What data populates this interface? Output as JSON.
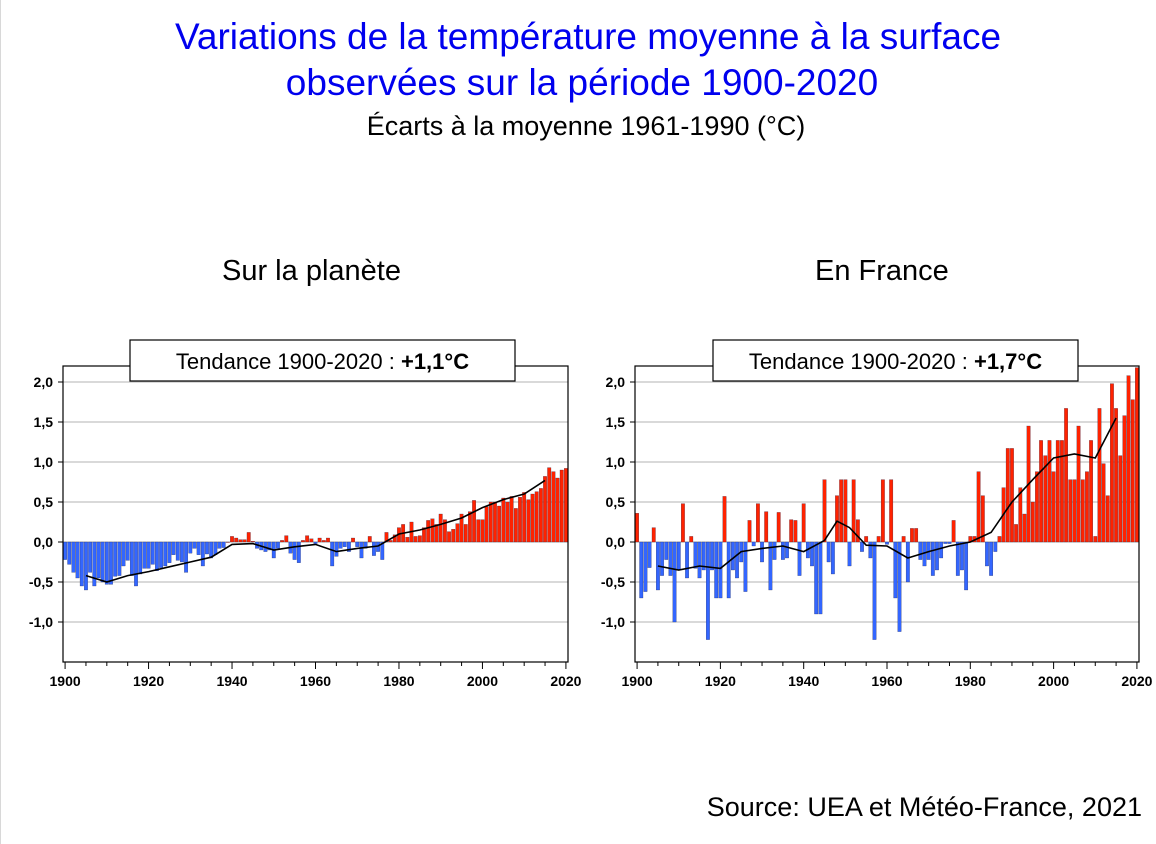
{
  "header": {
    "title_line1": "Variations de la température moyenne à la surface",
    "title_line2": "observées sur la période 1900-2020",
    "subtitle": "Écarts à la moyenne 1961-1990 (°C)"
  },
  "footer": {
    "source": "Source: UEA et Météo-France, 2021"
  },
  "colors": {
    "title": "#0000ee",
    "negative": "#3366ff",
    "positive": "#ff2200",
    "trend": "#000000"
  },
  "chart_data": [
    {
      "type": "bar",
      "title": "Sur la planète",
      "trend_label": "Tendance 1900-2020 : ",
      "trend_value": "+1,1°C",
      "x": [
        1900,
        1901,
        1902,
        1903,
        1904,
        1905,
        1906,
        1907,
        1908,
        1909,
        1910,
        1911,
        1912,
        1913,
        1914,
        1915,
        1916,
        1917,
        1918,
        1919,
        1920,
        1921,
        1922,
        1923,
        1924,
        1925,
        1926,
        1927,
        1928,
        1929,
        1930,
        1931,
        1932,
        1933,
        1934,
        1935,
        1936,
        1937,
        1938,
        1939,
        1940,
        1941,
        1942,
        1943,
        1944,
        1945,
        1946,
        1947,
        1948,
        1949,
        1950,
        1951,
        1952,
        1953,
        1954,
        1955,
        1956,
        1957,
        1958,
        1959,
        1960,
        1961,
        1962,
        1963,
        1964,
        1965,
        1966,
        1967,
        1968,
        1969,
        1970,
        1971,
        1972,
        1973,
        1974,
        1975,
        1976,
        1977,
        1978,
        1979,
        1980,
        1981,
        1982,
        1983,
        1984,
        1985,
        1986,
        1987,
        1988,
        1989,
        1990,
        1991,
        1992,
        1993,
        1994,
        1995,
        1996,
        1997,
        1998,
        1999,
        2000,
        2001,
        2002,
        2003,
        2004,
        2005,
        2006,
        2007,
        2008,
        2009,
        2010,
        2011,
        2012,
        2013,
        2014,
        2015,
        2016,
        2017,
        2018,
        2019,
        2020
      ],
      "values": [
        -0.22,
        -0.28,
        -0.38,
        -0.45,
        -0.55,
        -0.6,
        -0.38,
        -0.55,
        -0.45,
        -0.5,
        -0.53,
        -0.53,
        -0.43,
        -0.42,
        -0.3,
        -0.23,
        -0.42,
        -0.55,
        -0.4,
        -0.33,
        -0.33,
        -0.28,
        -0.36,
        -0.32,
        -0.3,
        -0.26,
        -0.16,
        -0.23,
        -0.25,
        -0.38,
        -0.14,
        -0.08,
        -0.16,
        -0.3,
        -0.15,
        -0.2,
        -0.16,
        -0.08,
        -0.07,
        0.0,
        0.07,
        0.05,
        0.03,
        0.03,
        0.12,
        0.01,
        -0.08,
        -0.1,
        -0.12,
        -0.1,
        -0.2,
        -0.08,
        0.02,
        0.08,
        -0.14,
        -0.22,
        -0.26,
        0.02,
        0.08,
        0.04,
        -0.02,
        0.05,
        0.02,
        0.05,
        -0.3,
        -0.18,
        -0.08,
        -0.06,
        -0.12,
        0.05,
        -0.06,
        -0.2,
        -0.08,
        0.07,
        -0.17,
        -0.12,
        -0.22,
        0.12,
        0.02,
        0.09,
        0.18,
        0.22,
        0.06,
        0.25,
        0.07,
        0.08,
        0.18,
        0.27,
        0.29,
        0.22,
        0.35,
        0.28,
        0.13,
        0.16,
        0.23,
        0.35,
        0.22,
        0.38,
        0.52,
        0.28,
        0.28,
        0.44,
        0.5,
        0.5,
        0.45,
        0.55,
        0.5,
        0.57,
        0.42,
        0.56,
        0.62,
        0.53,
        0.6,
        0.63,
        0.67,
        0.82,
        0.93,
        0.88,
        0.8,
        0.9,
        0.92
      ],
      "trend": [
        [
          1905,
          -0.42
        ],
        [
          1910,
          -0.5
        ],
        [
          1915,
          -0.42
        ],
        [
          1920,
          -0.37
        ],
        [
          1925,
          -0.31
        ],
        [
          1930,
          -0.25
        ],
        [
          1935,
          -0.19
        ],
        [
          1940,
          -0.03
        ],
        [
          1945,
          -0.02
        ],
        [
          1950,
          -0.1
        ],
        [
          1955,
          -0.06
        ],
        [
          1960,
          -0.03
        ],
        [
          1965,
          -0.12
        ],
        [
          1970,
          -0.08
        ],
        [
          1975,
          -0.05
        ],
        [
          1980,
          0.1
        ],
        [
          1985,
          0.15
        ],
        [
          1990,
          0.22
        ],
        [
          1995,
          0.3
        ],
        [
          2000,
          0.43
        ],
        [
          2005,
          0.53
        ],
        [
          2010,
          0.6
        ],
        [
          2015,
          0.77
        ]
      ],
      "xlim": [
        1900,
        2020
      ],
      "ylim": [
        -1.5,
        2.2
      ],
      "y_ticks": [
        -1.0,
        -0.5,
        0.0,
        0.5,
        1.0,
        1.5,
        2.0
      ],
      "y_tick_labels": [
        "-1,0",
        "-0,5",
        "0,0",
        "0,5",
        "1,0",
        "1,5",
        "2,0"
      ],
      "x_ticks": [
        1900,
        1920,
        1940,
        1960,
        1980,
        2000,
        2020
      ],
      "x_tick_labels": [
        "1900",
        "1920",
        "1940",
        "1960",
        "1980",
        "2000",
        "2020"
      ],
      "grid": true
    },
    {
      "type": "bar",
      "title": "En France",
      "trend_label": "Tendance 1900-2020 : ",
      "trend_value": "+1,7°C",
      "x": [
        1900,
        1901,
        1902,
        1903,
        1904,
        1905,
        1906,
        1907,
        1908,
        1909,
        1910,
        1911,
        1912,
        1913,
        1914,
        1915,
        1916,
        1917,
        1918,
        1919,
        1920,
        1921,
        1922,
        1923,
        1924,
        1925,
        1926,
        1927,
        1928,
        1929,
        1930,
        1931,
        1932,
        1933,
        1934,
        1935,
        1936,
        1937,
        1938,
        1939,
        1940,
        1941,
        1942,
        1943,
        1944,
        1945,
        1946,
        1947,
        1948,
        1949,
        1950,
        1951,
        1952,
        1953,
        1954,
        1955,
        1956,
        1957,
        1958,
        1959,
        1960,
        1961,
        1962,
        1963,
        1964,
        1965,
        1966,
        1967,
        1968,
        1969,
        1970,
        1971,
        1972,
        1973,
        1974,
        1975,
        1976,
        1977,
        1978,
        1979,
        1980,
        1981,
        1982,
        1983,
        1984,
        1985,
        1986,
        1987,
        1988,
        1989,
        1990,
        1991,
        1992,
        1993,
        1994,
        1995,
        1996,
        1997,
        1998,
        1999,
        2000,
        2001,
        2002,
        2003,
        2004,
        2005,
        2006,
        2007,
        2008,
        2009,
        2010,
        2011,
        2012,
        2013,
        2014,
        2015,
        2016,
        2017,
        2018,
        2019,
        2020
      ],
      "values": [
        0.36,
        -0.7,
        -0.62,
        -0.32,
        0.18,
        -0.6,
        -0.42,
        -0.22,
        -0.42,
        -1.0,
        -0.35,
        0.48,
        -0.45,
        0.07,
        -0.33,
        -0.45,
        -0.35,
        -1.22,
        -0.35,
        -0.7,
        -0.7,
        0.57,
        -0.7,
        -0.35,
        -0.45,
        -0.25,
        -0.62,
        0.27,
        -0.05,
        0.48,
        -0.25,
        0.38,
        -0.6,
        -0.22,
        0.37,
        -0.22,
        -0.2,
        0.28,
        0.27,
        -0.42,
        0.48,
        -0.2,
        -0.3,
        -0.9,
        -0.9,
        0.78,
        -0.25,
        -0.4,
        0.58,
        0.78,
        0.78,
        -0.3,
        0.78,
        0.28,
        -0.12,
        0.07,
        -0.2,
        -1.22,
        0.07,
        0.78,
        -0.03,
        0.78,
        -0.7,
        -1.12,
        0.07,
        -0.5,
        0.17,
        0.17,
        -0.22,
        -0.3,
        -0.22,
        -0.42,
        -0.35,
        -0.2,
        -0.02,
        -0.02,
        0.27,
        -0.42,
        -0.35,
        -0.6,
        0.07,
        0.07,
        0.88,
        0.58,
        -0.3,
        -0.42,
        -0.12,
        0.07,
        0.68,
        1.17,
        1.17,
        0.22,
        0.68,
        0.35,
        1.45,
        0.5,
        0.88,
        1.27,
        1.08,
        1.27,
        0.88,
        1.27,
        1.27,
        1.67,
        0.78,
        0.78,
        1.45,
        0.78,
        0.88,
        1.27,
        0.07,
        1.67,
        0.98,
        0.58,
        1.98,
        1.67,
        1.08,
        1.58,
        2.08,
        1.78,
        2.18
      ],
      "trend": [
        [
          1905,
          -0.3
        ],
        [
          1910,
          -0.35
        ],
        [
          1915,
          -0.3
        ],
        [
          1920,
          -0.33
        ],
        [
          1925,
          -0.12
        ],
        [
          1930,
          -0.08
        ],
        [
          1935,
          -0.05
        ],
        [
          1940,
          -0.12
        ],
        [
          1945,
          0.02
        ],
        [
          1948,
          0.26
        ],
        [
          1951,
          0.18
        ],
        [
          1955,
          -0.04
        ],
        [
          1960,
          -0.05
        ],
        [
          1965,
          -0.2
        ],
        [
          1970,
          -0.12
        ],
        [
          1975,
          -0.05
        ],
        [
          1980,
          0.0
        ],
        [
          1985,
          0.12
        ],
        [
          1990,
          0.5
        ],
        [
          1995,
          0.78
        ],
        [
          2000,
          1.05
        ],
        [
          2005,
          1.1
        ],
        [
          2010,
          1.05
        ],
        [
          2015,
          1.55
        ]
      ],
      "xlim": [
        1900,
        2020
      ],
      "ylim": [
        -1.5,
        2.2
      ],
      "y_ticks": [
        -1.0,
        -0.5,
        0.0,
        0.5,
        1.0,
        1.5,
        2.0
      ],
      "y_tick_labels": [
        "-1,0",
        "-0,5",
        "0,0",
        "0,5",
        "1,0",
        "1,5",
        "2,0"
      ],
      "x_ticks": [
        1900,
        1920,
        1940,
        1960,
        1980,
        2000,
        2020
      ],
      "x_tick_labels": [
        "1900",
        "1920",
        "1940",
        "1960",
        "1980",
        "2000",
        "2020"
      ],
      "grid": true
    }
  ]
}
